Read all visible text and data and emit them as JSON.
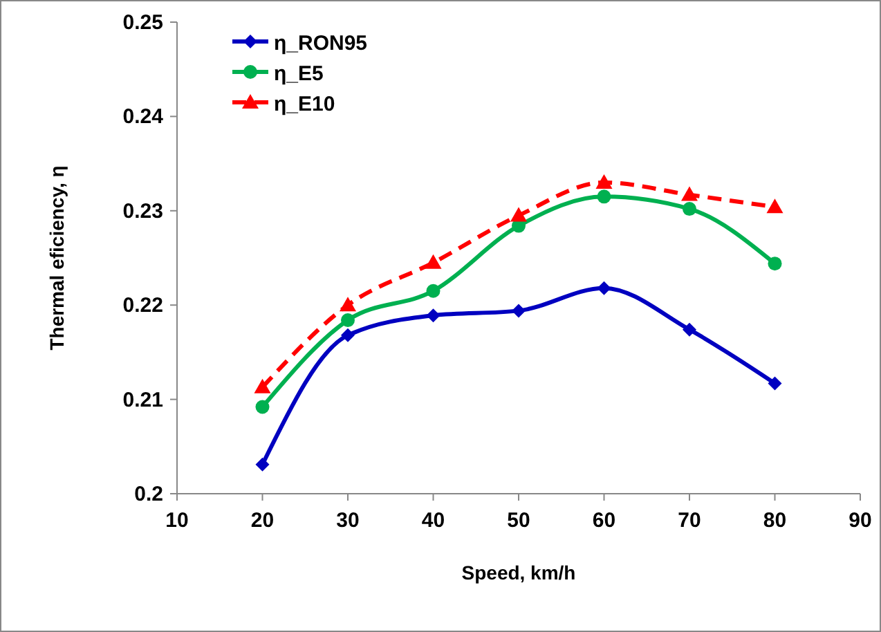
{
  "chart_data": {
    "type": "line",
    "xlabel": "Speed, km/h",
    "ylabel": "Thermal eficiency, η",
    "x": [
      20,
      30,
      40,
      50,
      60,
      70,
      80
    ],
    "series": [
      {
        "name": "η_RON95",
        "color": "#0000c0",
        "values": [
          0.2031,
          0.2168,
          0.2189,
          0.2194,
          0.2218,
          0.2174,
          0.2117
        ],
        "marker": "diamond",
        "line_style": "solid"
      },
      {
        "name": "η_E5",
        "color": "#00b050",
        "values": [
          0.2092,
          0.2184,
          0.2215,
          0.2284,
          0.2315,
          0.2302,
          0.2244
        ],
        "marker": "circle",
        "line_style": "solid"
      },
      {
        "name": "η_E10",
        "color": "#ff0000",
        "values": [
          0.2113,
          0.22,
          0.2245,
          0.2295,
          0.233,
          0.2317,
          0.2304
        ],
        "marker": "triangle",
        "line_style": "dashed"
      }
    ],
    "xlim": [
      10,
      90
    ],
    "xticks": [
      10,
      20,
      30,
      40,
      50,
      60,
      70,
      80,
      90
    ],
    "ylim": [
      0.2,
      0.25
    ],
    "yticks": [
      {
        "value": 0.2,
        "label": "0.2"
      },
      0.21,
      0.22,
      0.23,
      0.24,
      0.25
    ],
    "legend": "top left",
    "grid": false
  }
}
